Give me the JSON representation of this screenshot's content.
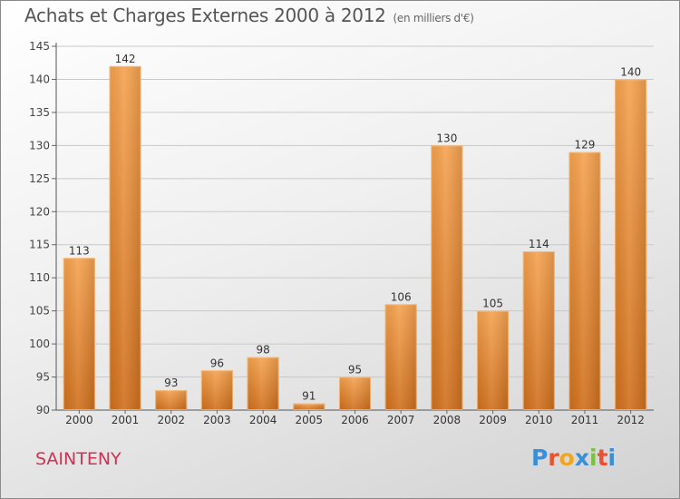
{
  "header": {
    "title": "Achats et Charges Externes 2000 à 2012",
    "subtitle": "(en milliers d'€)"
  },
  "footer": {
    "town": "SAINTENY",
    "logo_text": "Proxiti"
  },
  "colors": {
    "bar_light": "#f5a24f",
    "bar_dark": "#cf6f1c",
    "town": "#cc3355",
    "logo_letters": [
      "#3a8fd9",
      "#e8522f",
      "#f2a51e",
      "#3a8fd9",
      "#7bc142",
      "#e8522f",
      "#3a8fd9"
    ]
  },
  "chart_data": {
    "type": "bar",
    "title": "Achats et Charges Externes 2000 à 2012",
    "subtitle": "(en milliers d'€)",
    "categories": [
      "2000",
      "2001",
      "2002",
      "2003",
      "2004",
      "2005",
      "2006",
      "2007",
      "2008",
      "2009",
      "2010",
      "2011",
      "2012"
    ],
    "values": [
      113,
      142,
      93,
      96,
      98,
      91,
      95,
      106,
      130,
      105,
      114,
      129,
      140
    ],
    "ylim": [
      90,
      145
    ],
    "yticks": [
      90,
      95,
      100,
      105,
      110,
      115,
      120,
      125,
      130,
      135,
      140,
      145
    ],
    "grid": true,
    "legend": "none",
    "data_labels": true
  }
}
